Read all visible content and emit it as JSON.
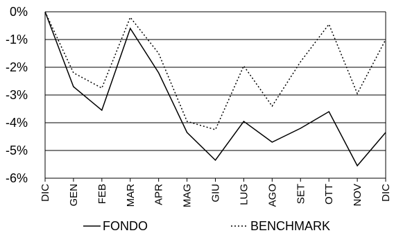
{
  "chart_data": {
    "type": "line",
    "categories": [
      "DIC",
      "GEN",
      "FEB",
      "MAR",
      "APR",
      "MAG",
      "GIU",
      "LUG",
      "AGO",
      "SET",
      "OTT",
      "NOV",
      "DIC"
    ],
    "series": [
      {
        "name": "FONDO",
        "line_style": "solid",
        "color": "#000000",
        "values": [
          0.0,
          -2.7,
          -3.55,
          -0.6,
          -2.2,
          -4.35,
          -5.35,
          -3.95,
          -4.7,
          -4.2,
          -3.6,
          -5.55,
          -4.35
        ]
      },
      {
        "name": "BENCHMARK",
        "line_style": "dotted",
        "color": "#000000",
        "values": [
          0.0,
          -2.2,
          -2.75,
          -0.2,
          -1.5,
          -3.95,
          -4.25,
          -1.95,
          -3.4,
          -1.8,
          -0.45,
          -2.95,
          -1.0
        ]
      }
    ],
    "y_ticks": [
      0,
      -1,
      -2,
      -3,
      -4,
      -5,
      -6
    ],
    "y_tick_labels": [
      "0%",
      "-1%",
      "-2%",
      "-3%",
      "-4%",
      "-5%",
      "-6%"
    ],
    "ylim": [
      -6,
      0
    ],
    "grid": "horizontal",
    "legend_position": "bottom"
  }
}
